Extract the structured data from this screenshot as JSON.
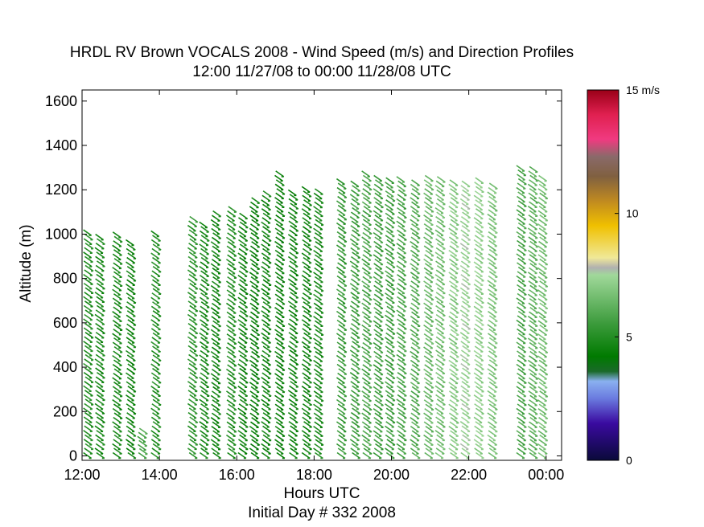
{
  "chart_data": {
    "type": "scatter",
    "title": "HRDL RV Brown VOCALS 2008 - Wind Speed (m/s) and Direction Profiles",
    "subtitle": "12:00 11/27/08 to 00:00 11/28/08  UTC",
    "xlabel": "Hours UTC",
    "xlabel2": "Initial Day # 332  2008",
    "ylabel": "Altitude (m)",
    "xlim": [
      12,
      24.4
    ],
    "ylim": [
      -20,
      1650
    ],
    "x_tick_values": [
      12,
      14,
      16,
      18,
      20,
      22,
      24
    ],
    "x_tick_labels": [
      "12:00",
      "14:00",
      "16:00",
      "18:00",
      "20:00",
      "22:00",
      "00:00"
    ],
    "y_ticks": [
      0,
      200,
      400,
      600,
      800,
      1000,
      1200,
      1400,
      1600
    ],
    "colorbar": {
      "label_top": "15 m/s",
      "ticks": [
        {
          "value": 0,
          "label": "0"
        },
        {
          "value": 5,
          "label": "5"
        },
        {
          "value": 10,
          "label": "10"
        }
      ],
      "range": [
        0,
        15
      ],
      "stops": [
        {
          "v": 0.0,
          "c": "#0a0a3a"
        },
        {
          "v": 1.5,
          "c": "#3a0aa0"
        },
        {
          "v": 2.5,
          "c": "#6a7adf"
        },
        {
          "v": 3.2,
          "c": "#8ab0f0"
        },
        {
          "v": 3.6,
          "c": "#1a6a2a"
        },
        {
          "v": 4.2,
          "c": "#007a00"
        },
        {
          "v": 5.5,
          "c": "#3a9a3a"
        },
        {
          "v": 7.5,
          "c": "#a0d89a"
        },
        {
          "v": 7.8,
          "c": "#b0b0b0"
        },
        {
          "v": 8.2,
          "c": "#f0e898"
        },
        {
          "v": 9.5,
          "c": "#f0c000"
        },
        {
          "v": 10.5,
          "c": "#c08a20"
        },
        {
          "v": 11.5,
          "c": "#806040"
        },
        {
          "v": 12.3,
          "c": "#8a6a6a"
        },
        {
          "v": 13.0,
          "c": "#f03a80"
        },
        {
          "v": 14.0,
          "c": "#e02050"
        },
        {
          "v": 15.0,
          "c": "#9a0018"
        }
      ]
    },
    "profiles": [
      {
        "t": 12.1,
        "top": 1005,
        "speed": 5.0
      },
      {
        "t": 12.4,
        "top": 985,
        "speed": 4.8
      },
      {
        "t": 12.85,
        "top": 995,
        "speed": 4.8
      },
      {
        "t": 13.2,
        "top": 960,
        "speed": 4.6
      },
      {
        "t": 13.5,
        "top": 110,
        "speed": 5.8
      },
      {
        "t": 13.85,
        "top": 1000,
        "speed": 5.0
      },
      {
        "t": 14.8,
        "top": 1065,
        "speed": 5.2
      },
      {
        "t": 15.1,
        "top": 1040,
        "speed": 4.8
      },
      {
        "t": 15.4,
        "top": 1090,
        "speed": 4.6
      },
      {
        "t": 15.8,
        "top": 1110,
        "speed": 5.0
      },
      {
        "t": 16.1,
        "top": 1080,
        "speed": 4.6
      },
      {
        "t": 16.4,
        "top": 1150,
        "speed": 4.4
      },
      {
        "t": 16.7,
        "top": 1180,
        "speed": 4.6
      },
      {
        "t": 17.05,
        "top": 1270,
        "speed": 4.4
      },
      {
        "t": 17.4,
        "top": 1185,
        "speed": 4.6
      },
      {
        "t": 17.75,
        "top": 1200,
        "speed": 4.6
      },
      {
        "t": 18.05,
        "top": 1190,
        "speed": 4.8
      },
      {
        "t": 18.65,
        "top": 1235,
        "speed": 5.4
      },
      {
        "t": 19.0,
        "top": 1225,
        "speed": 5.6
      },
      {
        "t": 19.3,
        "top": 1270,
        "speed": 5.8
      },
      {
        "t": 19.6,
        "top": 1250,
        "speed": 5.6
      },
      {
        "t": 19.9,
        "top": 1240,
        "speed": 5.6
      },
      {
        "t": 20.2,
        "top": 1245,
        "speed": 5.8
      },
      {
        "t": 20.55,
        "top": 1230,
        "speed": 6.0
      },
      {
        "t": 20.9,
        "top": 1250,
        "speed": 6.4
      },
      {
        "t": 21.2,
        "top": 1245,
        "speed": 6.6
      },
      {
        "t": 21.55,
        "top": 1230,
        "speed": 7.0
      },
      {
        "t": 21.85,
        "top": 1225,
        "speed": 7.4
      },
      {
        "t": 22.2,
        "top": 1240,
        "speed": 7.2
      },
      {
        "t": 22.55,
        "top": 1215,
        "speed": 6.8
      },
      {
        "t": 23.3,
        "top": 1295,
        "speed": 5.8
      },
      {
        "t": 23.6,
        "top": 1290,
        "speed": 6.2
      },
      {
        "t": 23.85,
        "top": 1250,
        "speed": 6.6
      }
    ]
  }
}
